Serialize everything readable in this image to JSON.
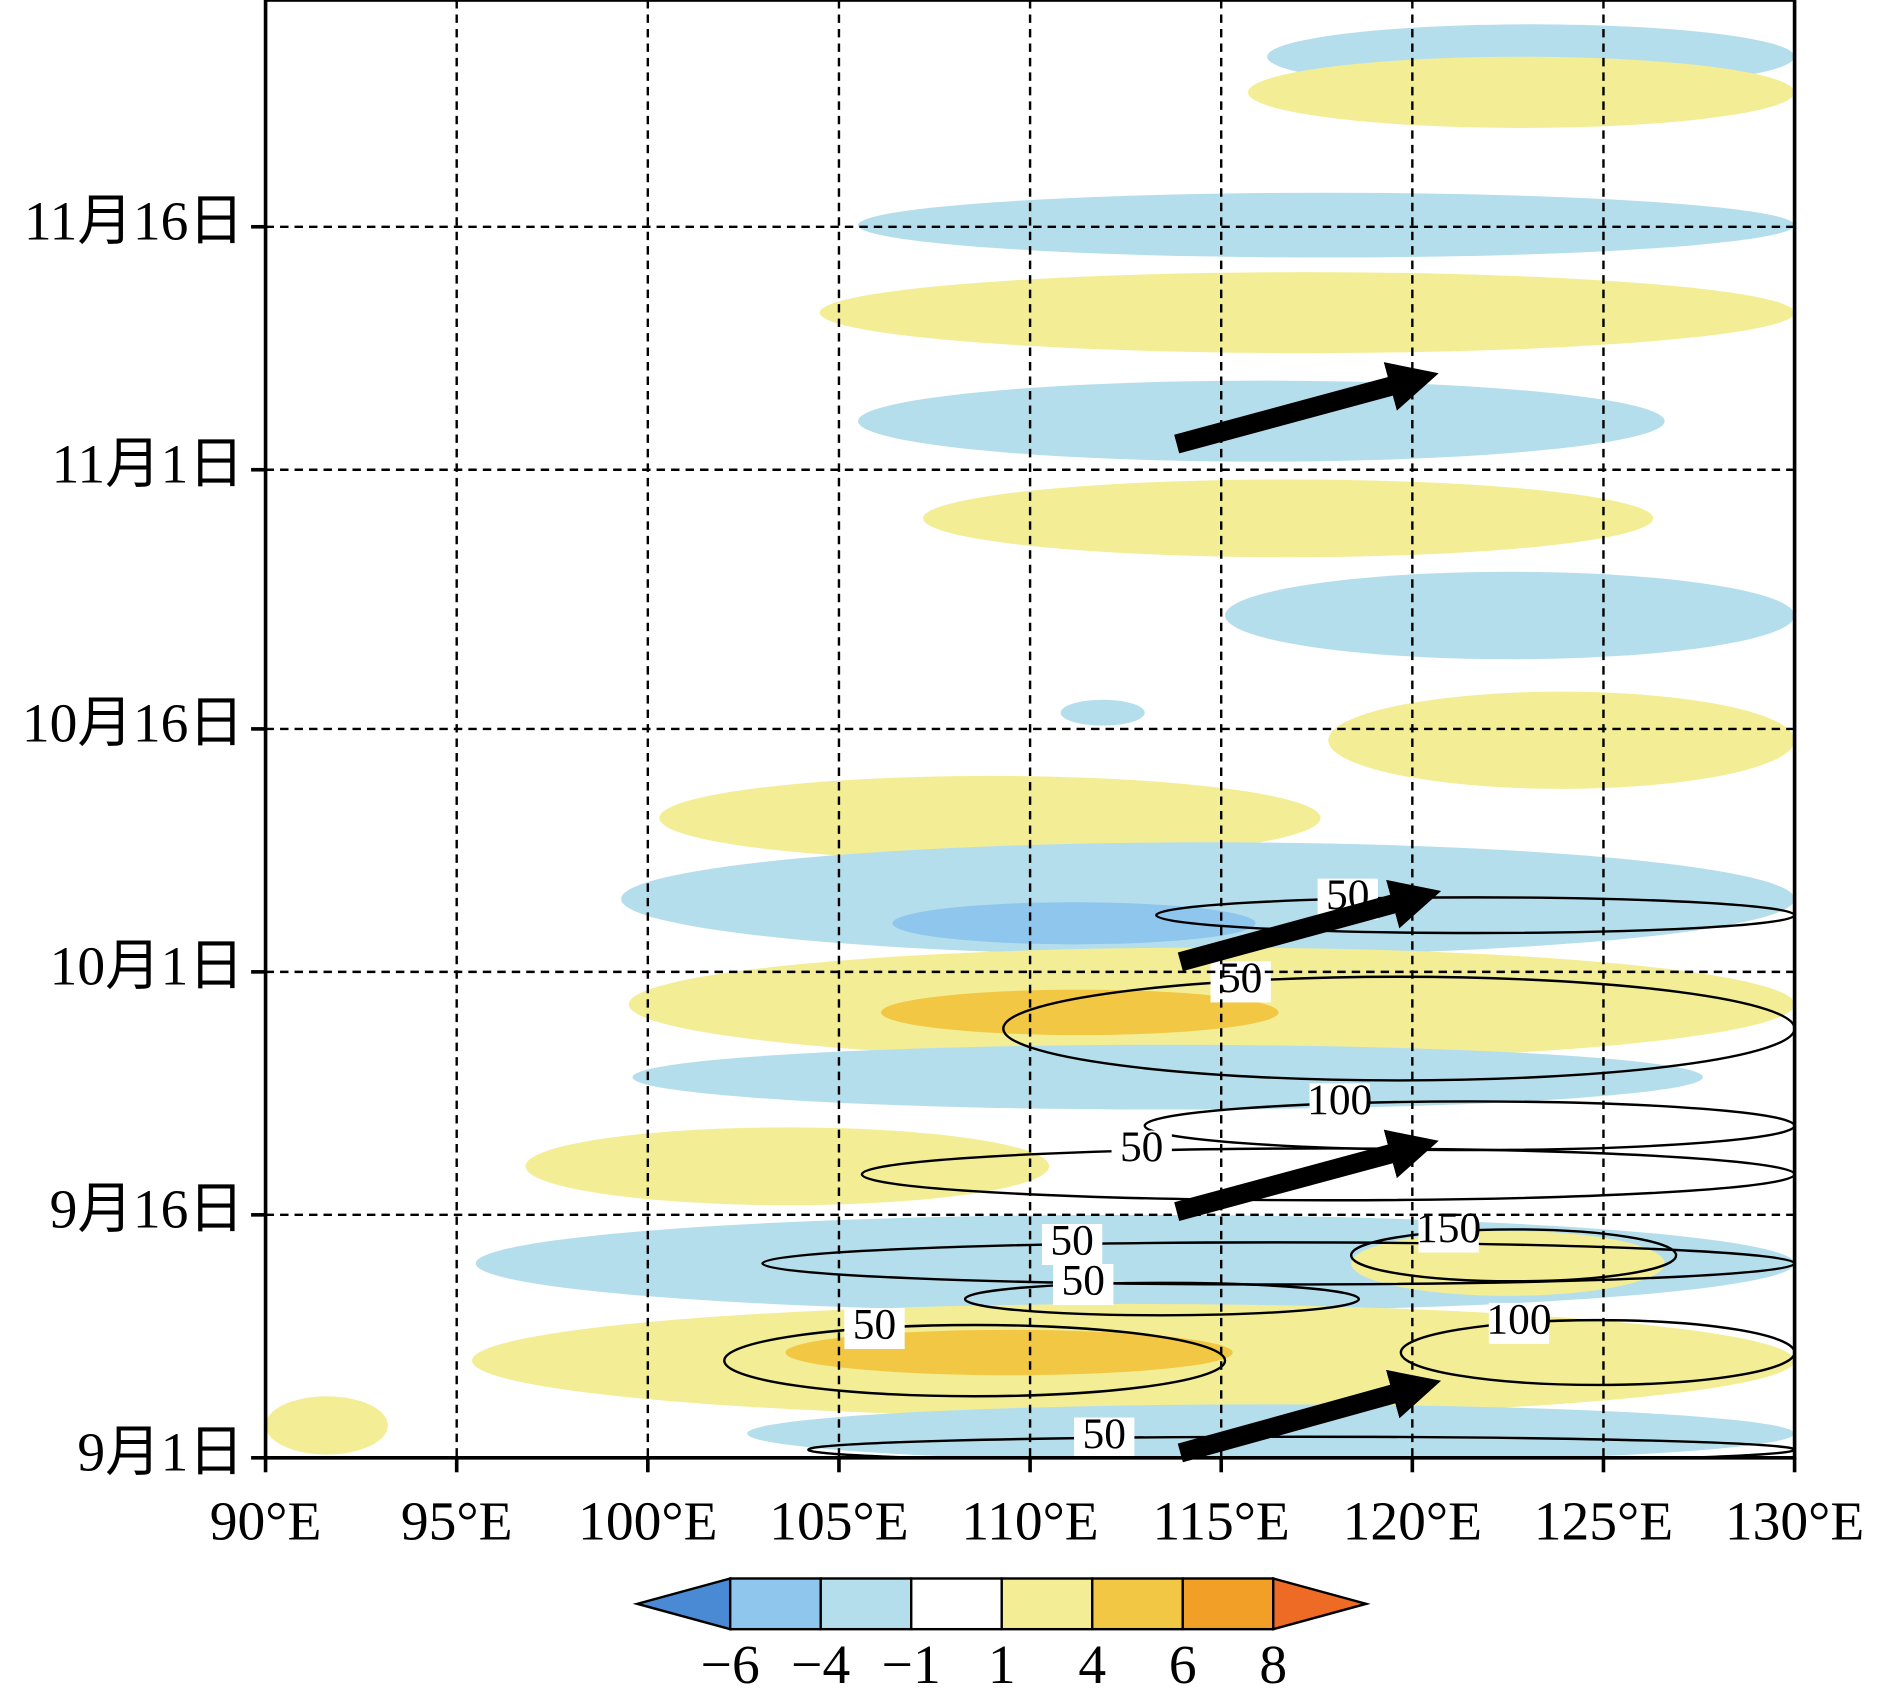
{
  "chart_data": {
    "type": "hovmoller",
    "xlim": [
      90,
      130
    ],
    "xticks": [
      {
        "value": 90,
        "label": "90°E"
      },
      {
        "value": 95,
        "label": "95°E"
      },
      {
        "value": 100,
        "label": "100°E"
      },
      {
        "value": 105,
        "label": "105°E"
      },
      {
        "value": 110,
        "label": "110°E"
      },
      {
        "value": 115,
        "label": "115°E"
      },
      {
        "value": 120,
        "label": "120°E"
      },
      {
        "value": 125,
        "label": "125°E"
      },
      {
        "value": 130,
        "label": "130°E"
      }
    ],
    "ylim": [
      0,
      90
    ],
    "yticks": [
      {
        "value": 0,
        "label": "9月1日"
      },
      {
        "value": 15,
        "label": "9月16日"
      },
      {
        "value": 30,
        "label": "10月1日"
      },
      {
        "value": 45,
        "label": "10月16日"
      },
      {
        "value": 61,
        "label": "11月1日"
      },
      {
        "value": 76,
        "label": "11月16日"
      }
    ],
    "grid": true,
    "colorbar": {
      "ticks": [
        {
          "value": -6,
          "label": "−6"
        },
        {
          "value": -4,
          "label": "−4"
        },
        {
          "value": -1,
          "label": "−1"
        },
        {
          "value": 1,
          "label": "1"
        },
        {
          "value": 4,
          "label": "4"
        },
        {
          "value": 6,
          "label": "6"
        },
        {
          "value": 8,
          "label": "8"
        }
      ],
      "colors": [
        "#4a8ad4",
        "#8fc6ee",
        "#b5deec",
        "#ffffff",
        "#f3ee96",
        "#f2c743",
        "#f19f27",
        "#ee6b26"
      ]
    },
    "bands": [
      {
        "value": -2,
        "lon": [
          116.2,
          130
        ],
        "day": 86.5,
        "halfwidth": 2
      },
      {
        "value": 2,
        "lon": [
          115.7,
          130
        ],
        "day": 84.3,
        "halfwidth": 2.2
      },
      {
        "value": -2,
        "lon": [
          105.5,
          130
        ],
        "day": 76.1,
        "halfwidth": 2
      },
      {
        "value": 2,
        "lon": [
          104.5,
          130
        ],
        "day": 70.7,
        "halfwidth": 2.5
      },
      {
        "value": -2,
        "lon": [
          105.5,
          126.6
        ],
        "day": 64,
        "halfwidth": 2.5
      },
      {
        "value": 2,
        "lon": [
          107.2,
          126.3
        ],
        "day": 58,
        "halfwidth": 2.4
      },
      {
        "value": -2,
        "lon": [
          115.1,
          130
        ],
        "day": 52,
        "halfwidth": 2.7
      },
      {
        "value": -2,
        "lon": [
          110.8,
          113
        ],
        "day": 46,
        "halfwidth": 0.8
      },
      {
        "value": 2,
        "lon": [
          117.8,
          130
        ],
        "day": 44.3,
        "halfwidth": 3
      },
      {
        "value": 2,
        "lon": [
          100.3,
          117.6
        ],
        "day": 39.5,
        "halfwidth": 2.6
      },
      {
        "value": -2,
        "lon": [
          99.3,
          130
        ],
        "day": 34.5,
        "halfwidth": 3.5
      },
      {
        "value": -5,
        "lon": [
          106.4,
          115.9
        ],
        "day": 33,
        "halfwidth": 1.3
      },
      {
        "value": 2,
        "lon": [
          99.5,
          130
        ],
        "day": 28,
        "halfwidth": 3.5
      },
      {
        "value": 5,
        "lon": [
          106.1,
          116.5
        ],
        "day": 27.5,
        "halfwidth": 1.4
      },
      {
        "value": -2,
        "lon": [
          99.6,
          127.6
        ],
        "day": 23.5,
        "halfwidth": 2
      },
      {
        "value": 2,
        "lon": [
          96.8,
          110.5
        ],
        "day": 18,
        "halfwidth": 2.4
      },
      {
        "value": -2,
        "lon": [
          95.5,
          130
        ],
        "day": 12,
        "halfwidth": 3
      },
      {
        "value": 2,
        "lon": [
          118.4,
          126.6
        ],
        "day": 12,
        "halfwidth": 2
      },
      {
        "value": 2,
        "lon": [
          95.4,
          130
        ],
        "day": 6,
        "halfwidth": 3.5
      },
      {
        "value": 5,
        "lon": [
          103.6,
          115.3
        ],
        "day": 6.5,
        "halfwidth": 1.4
      },
      {
        "value": -2,
        "lon": [
          102.6,
          130
        ],
        "day": 1.5,
        "halfwidth": 1.8
      },
      {
        "value": 2,
        "lon": [
          90,
          93.2
        ],
        "day": 2,
        "halfwidth": 1.8
      }
    ],
    "contours": [
      {
        "level": 50,
        "lon": [
          113.3,
          130
        ],
        "day": 33.5,
        "halfwidth": 1.1
      },
      {
        "level": 50,
        "lon": [
          109.3,
          130
        ],
        "day": 26.5,
        "halfwidth": 3.2
      },
      {
        "level": 100,
        "lon": [
          113,
          130
        ],
        "day": 20.5,
        "halfwidth": 1.5
      },
      {
        "level": 50,
        "lon": [
          105.6,
          130
        ],
        "day": 17.5,
        "halfwidth": 1.6
      },
      {
        "level": 150,
        "lon": [
          118.4,
          126.9
        ],
        "day": 12.5,
        "halfwidth": 1.6
      },
      {
        "level": 50,
        "lon": [
          103,
          130
        ],
        "day": 12,
        "halfwidth": 1.3
      },
      {
        "level": 50,
        "lon": [
          108.3,
          118.6
        ],
        "day": 9.8,
        "halfwidth": 1
      },
      {
        "level": 100,
        "lon": [
          119.7,
          130
        ],
        "day": 6.5,
        "halfwidth": 2
      },
      {
        "level": 50,
        "lon": [
          102,
          115.1
        ],
        "day": 6,
        "halfwidth": 2.2
      },
      {
        "level": 50,
        "lon": [
          104.2,
          130
        ],
        "day": 0.5,
        "halfwidth": 0.8
      }
    ]
  }
}
